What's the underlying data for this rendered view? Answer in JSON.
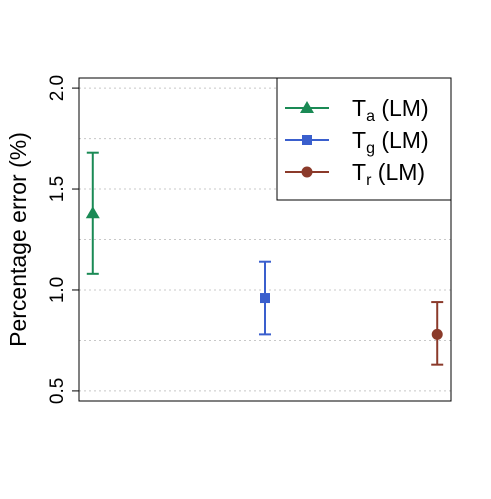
{
  "chart_data": {
    "type": "scatter",
    "title": "",
    "xlabel": "",
    "ylabel": "Percentage error (%)",
    "ylim": [
      0.45,
      2.05
    ],
    "y_ticks": [
      0.5,
      1.0,
      1.5,
      2.0
    ],
    "y_tick_labels": [
      "0.5",
      "1.0",
      "1.5",
      "2.0"
    ],
    "gridlines_y": [
      0.5,
      0.75,
      1.0,
      1.25,
      1.5,
      1.75,
      2.0
    ],
    "grid": "horizontal dotted",
    "legend_position": "top-right",
    "series": [
      {
        "name": "Ta (LM)",
        "legend_base": "T",
        "legend_sub": "a",
        "legend_suffix": " (LM)",
        "marker": "triangle",
        "color": "#1a8a55",
        "x": 1,
        "y": 1.38,
        "err_low": 1.08,
        "err_high": 1.68
      },
      {
        "name": "Tg (LM)",
        "legend_base": "T",
        "legend_sub": "g",
        "legend_suffix": " (LM)",
        "marker": "square",
        "color": "#3a5fcd",
        "x": 2,
        "y": 0.96,
        "err_low": 0.78,
        "err_high": 1.14
      },
      {
        "name": "Tr (LM)",
        "legend_base": "T",
        "legend_sub": "r",
        "legend_suffix": " (LM)",
        "marker": "circle",
        "color": "#8b3a2a",
        "x": 3,
        "y": 0.78,
        "err_low": 0.63,
        "err_high": 0.94
      }
    ],
    "xlim": [
      0.92,
      3.08
    ]
  }
}
